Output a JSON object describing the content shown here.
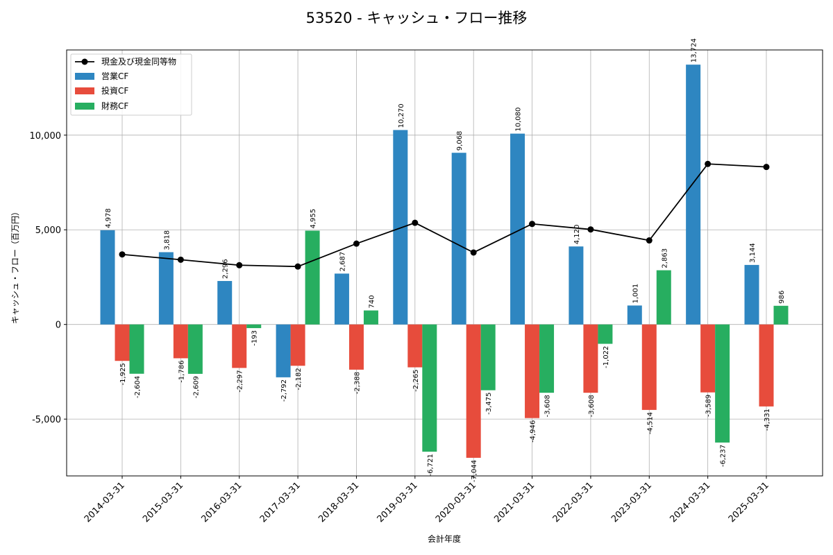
{
  "chart_data": {
    "type": "bar",
    "title": "53520 - キャッシュ・フロー推移",
    "xlabel": "会計年度",
    "ylabel": "キャッシュ・フロー（百万円）",
    "ylim": [
      -8000,
      14500
    ],
    "yticks": [
      -5000,
      0,
      5000,
      10000
    ],
    "ytick_labels": [
      "-5,000",
      "0",
      "5,000",
      "10,000"
    ],
    "grid": true,
    "legend_position": "top-left",
    "categories": [
      "2014-03-31",
      "2015-03-31",
      "2016-03-31",
      "2017-03-31",
      "2018-03-31",
      "2019-03-31",
      "2020-03-31",
      "2021-03-31",
      "2022-03-31",
      "2023-03-31",
      "2024-03-31",
      "2025-03-31"
    ],
    "series": [
      {
        "name": "営業CF",
        "kind": "bar",
        "color": "#2e86c1",
        "values": [
          4978,
          3818,
          2296,
          -2792,
          2687,
          10270,
          9068,
          10080,
          4120,
          1001,
          13724,
          3144
        ],
        "labels": [
          "4,978",
          "3,818",
          "2,296",
          "-2,792",
          "2,687",
          "10,270",
          "9,068",
          "10,080",
          "4,120",
          "1,001",
          "13,724",
          "3,144"
        ]
      },
      {
        "name": "投資CF",
        "kind": "bar",
        "color": "#e74c3c",
        "values": [
          -1925,
          -1786,
          -2297,
          -2182,
          -2388,
          -2265,
          -7044,
          -4946,
          -3608,
          -4514,
          -3589,
          -4331
        ],
        "labels": [
          "-1,925",
          "-1,786",
          "-2,297",
          "-2,182",
          "-2,388",
          "-2,265",
          "-7,044",
          "-4,946",
          "-3,608",
          "-4,514",
          "-3,589",
          "-4,331"
        ]
      },
      {
        "name": "財務CF",
        "kind": "bar",
        "color": "#27ae60",
        "values": [
          -2604,
          -2609,
          -193,
          4955,
          740,
          -6721,
          -3475,
          -3608,
          -1022,
          2863,
          -6237,
          986
        ],
        "labels": [
          "-2,604",
          "-2,609",
          "-193",
          "4,955",
          "740",
          "-6,721",
          "-3,475",
          "-3,608",
          "-1,022",
          "2,863",
          "-6,237",
          "986"
        ]
      }
    ],
    "line": {
      "name": "現金及び現金同等物",
      "kind": "line",
      "color": "#000000",
      "values": [
        3700,
        3420,
        3130,
        3060,
        4270,
        5370,
        3800,
        5310,
        5020,
        4440,
        8480,
        8320
      ]
    }
  }
}
